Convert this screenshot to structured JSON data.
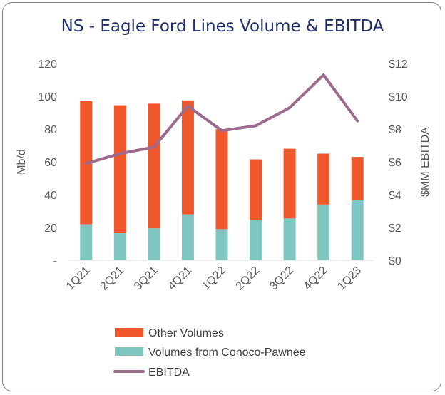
{
  "chart_data": {
    "type": "bar",
    "title": "NS - Eagle Ford Lines Volume & EBITDA",
    "categories": [
      "1Q21",
      "2Q21",
      "3Q21",
      "4Q21",
      "1Q22",
      "2Q22",
      "3Q22",
      "4Q22",
      "1Q23"
    ],
    "stacked": true,
    "series": [
      {
        "name": "Volumes from Conoco-Pawnee",
        "type": "bar",
        "axis": "left",
        "color": "#7fc6c1",
        "values": [
          22,
          16.5,
          19.5,
          28,
          19,
          24.5,
          25.5,
          34,
          36.5
        ]
      },
      {
        "name": "Other Volumes",
        "type": "bar",
        "axis": "left",
        "color": "#f0572a",
        "values": [
          75,
          78,
          76,
          69.5,
          61,
          37,
          42.5,
          31,
          26.5
        ]
      },
      {
        "name": "EBITDA",
        "type": "line",
        "axis": "right",
        "color": "#9c6b8e",
        "values": [
          5.9,
          6.5,
          6.9,
          9.4,
          7.9,
          8.2,
          9.3,
          11.3,
          8.5
        ]
      }
    ],
    "ylabel": "Mb/d",
    "ylabel_right": "$MM EBITDA",
    "ylim": [
      0,
      120
    ],
    "ylim_right": [
      0,
      12
    ],
    "yticks": [
      "-",
      "20",
      "40",
      "60",
      "80",
      "100",
      "120"
    ],
    "yticks_right": [
      "$0",
      "$2",
      "$4",
      "$6",
      "$8",
      "$10",
      "$12"
    ],
    "legend_order": [
      "Other Volumes",
      "Volumes from Conoco-Pawnee",
      "EBITDA"
    ],
    "legend_position": "bottom",
    "grid": false
  }
}
